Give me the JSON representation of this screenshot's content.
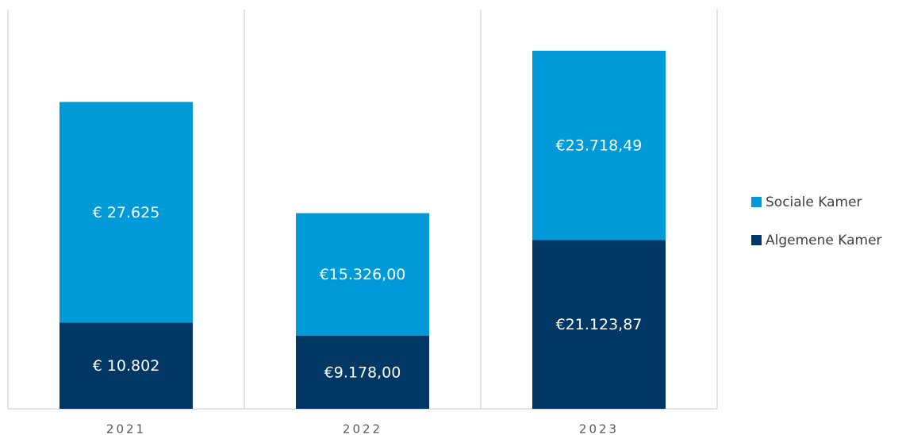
{
  "chart_data": {
    "type": "stacked-bar",
    "categories": [
      "2021",
      "2022",
      "2023"
    ],
    "series": [
      {
        "name": "Algemene Kamer",
        "color": "#003764",
        "values": [
          10802,
          9178,
          21123.87
        ],
        "value_labels": [
          "€ 10.802",
          "€9.178,00",
          "€21.123,87"
        ]
      },
      {
        "name": "Sociale Kamer",
        "color": "#009ad8",
        "values": [
          27625,
          15326,
          23718.49
        ],
        "value_labels": [
          "€ 27.625",
          "€15.326,00",
          "€23.718,49"
        ]
      }
    ],
    "ylim": [
      0,
      50000
    ],
    "legend": "right"
  }
}
